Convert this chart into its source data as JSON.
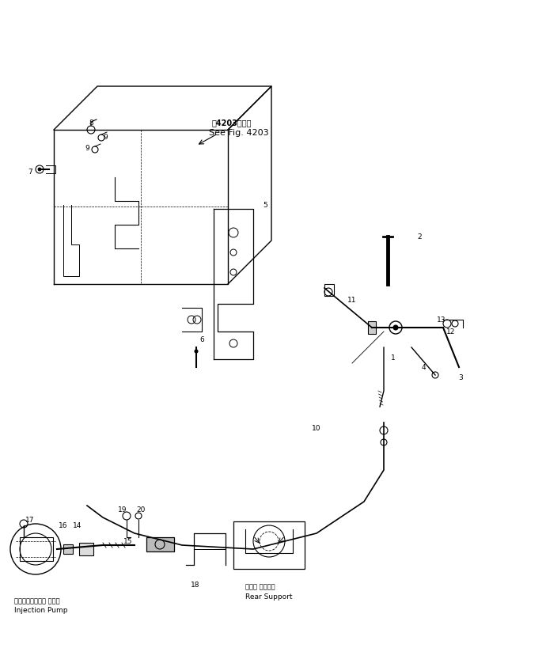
{
  "bg_color": "#ffffff",
  "fig_width": 6.9,
  "fig_height": 8.2,
  "dpi": 100,
  "see_fig_text_jp": "第4203図参照",
  "see_fig_text_en": "See Fig. 4203",
  "injection_pump_jp": "インジェクション ポンプ",
  "injection_pump_en": "Injection Pump",
  "rear_support_jp": "リヤー サポート",
  "rear_support_en": "Rear Support"
}
